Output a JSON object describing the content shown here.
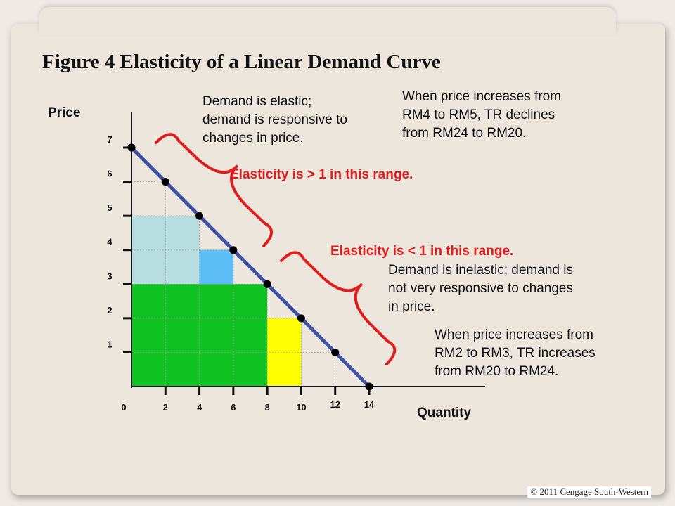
{
  "title": "Figure 4 Elasticity of a Linear Demand Curve",
  "copyright": "© 2011 Cengage South-Western",
  "annotations": {
    "elastic_note": [
      "Demand is elastic;",
      "demand is responsive to",
      "changes in price."
    ],
    "tr_decline_note": [
      "When price increases from",
      "RM4 to RM5, TR declines",
      "from RM24 to RM20."
    ],
    "elastic_range": "Elasticity is > 1 in this range.",
    "inelastic_range": "Elasticity is < 1 in this range.",
    "inelastic_note": [
      "Demand is inelastic; demand is",
      "not very responsive to changes",
      "in price."
    ],
    "tr_increase_note": [
      "When price increases from",
      "RM2 to RM3, TR increases",
      "from RM20 to RM24."
    ]
  },
  "chart_data": {
    "type": "line",
    "title": "Figure 4 Elasticity of a Linear Demand Curve",
    "xlabel": "Quantity",
    "ylabel": "Price",
    "x_ticks": [
      "0",
      "2",
      "4",
      "6",
      "8",
      "10",
      "12",
      "14"
    ],
    "y_ticks": [
      "1",
      "2",
      "3",
      "4",
      "5",
      "6",
      "7"
    ],
    "xlim": [
      0,
      14
    ],
    "ylim": [
      0,
      7
    ],
    "series": [
      {
        "x": [
          0,
          2,
          4,
          6,
          8,
          10,
          12,
          14
        ],
        "y": [
          7,
          6,
          5,
          4,
          3,
          2,
          1,
          0
        ],
        "color": "#3e4fa6"
      }
    ],
    "shaded_areas": [
      {
        "from": [
          0,
          0
        ],
        "to": [
          4,
          5
        ],
        "color": "#b7dde1"
      },
      {
        "from": [
          4,
          3
        ],
        "to": [
          6,
          4
        ],
        "color": "#5dbdf5"
      },
      {
        "from": [
          0,
          0
        ],
        "to": [
          8,
          3
        ],
        "color": "#11c223"
      },
      {
        "from": [
          8,
          0
        ],
        "to": [
          10,
          2
        ],
        "color": "#fefe00"
      }
    ],
    "grid": false,
    "colors": {
      "demand_line": "#3e4fa6",
      "price_rm5_region": "#b7dde1",
      "price_rm4_extra": "#5dbdf5",
      "tr_common_region": "#11c223",
      "price_rm2_extra": "#fefe00",
      "brace": "#e01b1b",
      "range_text": "#e01b1b"
    }
  }
}
